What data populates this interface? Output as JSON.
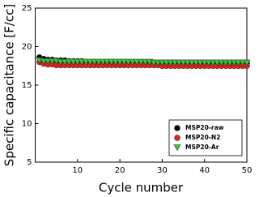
{
  "chart_data": {
    "type": "scatter",
    "x_label": "Cycle number",
    "y_label": "Specific capacitance [F/cc]",
    "x": [
      1,
      2,
      3,
      4,
      5,
      6,
      7,
      8,
      9,
      10,
      11,
      12,
      13,
      14,
      15,
      16,
      17,
      18,
      19,
      20,
      21,
      22,
      23,
      24,
      25,
      26,
      27,
      28,
      29,
      30,
      31,
      32,
      33,
      34,
      35,
      36,
      37,
      38,
      39,
      40,
      41,
      42,
      43,
      44,
      45,
      46,
      47,
      48,
      49,
      50
    ],
    "series": [
      {
        "name": "MSP20-raw",
        "color": "#000000",
        "marker": "circle",
        "values": [
          18.6,
          18.4,
          18.3,
          18.3,
          18.2,
          18.2,
          18.2,
          18.1,
          18.1,
          18.1,
          18.1,
          18.0,
          18.0,
          18.0,
          18.0,
          18.0,
          18.0,
          18.0,
          18.0,
          18.0,
          18.0,
          17.9,
          17.9,
          17.9,
          17.9,
          17.9,
          17.9,
          17.9,
          17.9,
          17.9,
          17.9,
          17.9,
          17.9,
          17.9,
          17.9,
          17.9,
          17.9,
          17.9,
          17.9,
          17.9,
          17.8,
          17.8,
          17.8,
          17.8,
          17.8,
          17.8,
          17.8,
          17.8,
          17.8,
          17.8
        ]
      },
      {
        "name": "MSP20-N2",
        "color": "#e8201c",
        "marker": "circle",
        "values": [
          18.0,
          17.8,
          17.7,
          17.7,
          17.6,
          17.6,
          17.6,
          17.6,
          17.6,
          17.6,
          17.6,
          17.6,
          17.6,
          17.6,
          17.6,
          17.6,
          17.6,
          17.6,
          17.6,
          17.6,
          17.6,
          17.6,
          17.6,
          17.6,
          17.6,
          17.6,
          17.6,
          17.6,
          17.6,
          17.5,
          17.5,
          17.5,
          17.5,
          17.5,
          17.5,
          17.5,
          17.5,
          17.5,
          17.5,
          17.5,
          17.5,
          17.5,
          17.5,
          17.5,
          17.5,
          17.5,
          17.5,
          17.5,
          17.5,
          17.5
        ]
      },
      {
        "name": "MSP20-Ar",
        "color": "#33cc33",
        "marker": "triangle-down",
        "values": [
          18.2,
          18.1,
          18.1,
          18.1,
          18.1,
          18.0,
          18.0,
          18.0,
          18.0,
          18.0,
          18.0,
          18.0,
          18.0,
          18.0,
          18.0,
          18.0,
          18.0,
          18.0,
          18.0,
          18.0,
          18.0,
          18.0,
          18.0,
          18.0,
          18.0,
          18.0,
          18.0,
          17.9,
          17.9,
          17.9,
          17.9,
          17.9,
          17.9,
          17.9,
          17.9,
          17.9,
          17.9,
          17.9,
          17.9,
          17.9,
          17.9,
          17.9,
          17.9,
          17.9,
          17.9,
          17.9,
          17.9,
          17.9,
          17.9,
          17.9
        ]
      }
    ],
    "xlim": [
      0,
      50
    ],
    "xticks": [
      10,
      20,
      30,
      40,
      50
    ],
    "ylim": [
      5,
      25
    ],
    "yticks": [
      5,
      10,
      15,
      20,
      25
    ],
    "legend": "lower right"
  }
}
